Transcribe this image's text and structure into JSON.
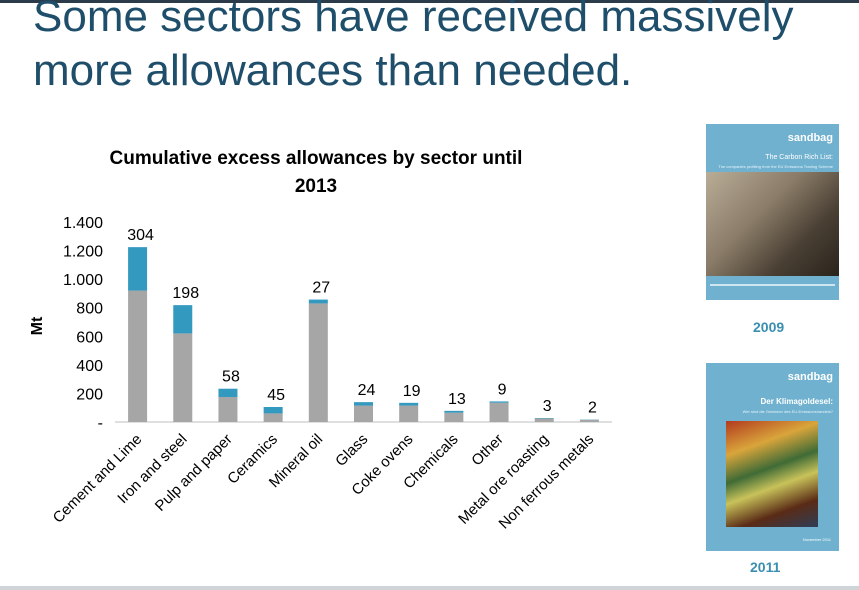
{
  "slide": {
    "title": "Some sectors have received massively more allowances than needed."
  },
  "colors": {
    "gray": "#a6a6a6",
    "blue": "#3399bf",
    "title": "#1f4e6b",
    "year": "#3a8fb0"
  },
  "chart_data": {
    "type": "bar",
    "stacked": true,
    "title": "Cumulative excess allowances by sector until 2013",
    "ylabel": "Mt",
    "xlabel": "",
    "ylim": [
      0,
      1400
    ],
    "yticks": [
      "-",
      "200",
      "400",
      "600",
      "800",
      "1.000",
      "1.200",
      "1.400"
    ],
    "categories": [
      "Cement and Lime",
      "Iron and steel",
      "Pulp and paper",
      "Ceramics",
      "Mineral oil",
      "Glass",
      "Coke ovens",
      "Chemicals",
      "Other",
      "Metal ore roasting",
      "Non ferrous metals"
    ],
    "series": [
      {
        "name": "base",
        "values": [
          920,
          620,
          175,
          60,
          830,
          115,
          115,
          65,
          135,
          25,
          15
        ]
      },
      {
        "name": "excess",
        "values": [
          304,
          198,
          58,
          45,
          27,
          24,
          19,
          13,
          9,
          3,
          2
        ]
      }
    ],
    "data_labels": [
      "304",
      "198",
      "58",
      "45",
      "27",
      "24",
      "19",
      "13",
      "9",
      "3",
      "2"
    ]
  },
  "reports": [
    {
      "logo": "sandbag",
      "title": "The Carbon Rich List:",
      "subtitle": "The companies profiting from the EU Emissions Trading Scheme",
      "year": "2009"
    },
    {
      "logo": "sandbag",
      "title": "Der Klimagoldesel:",
      "subtitle": "Wer sind die Gewinner des EU-Emissionshandels?",
      "date": "November 2011",
      "year": "2011"
    }
  ]
}
